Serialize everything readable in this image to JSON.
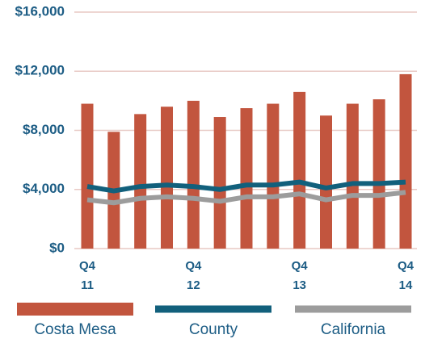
{
  "chart_data": {
    "type": "bar",
    "categories": [
      "Q4\n11",
      null,
      null,
      null,
      "Q4\n12",
      null,
      null,
      null,
      "Q4\n13",
      null,
      null,
      null,
      "Q4\n14"
    ],
    "series": [
      {
        "name": "Costa Mesa",
        "type": "bar",
        "color": "#c2553e",
        "values": [
          9800,
          7900,
          9100,
          9600,
          10000,
          8900,
          9500,
          9800,
          10600,
          9000,
          9800,
          10100,
          11800
        ]
      },
      {
        "name": "County",
        "type": "line",
        "color": "#12607c",
        "values": [
          4200,
          3900,
          4200,
          4300,
          4200,
          4000,
          4300,
          4300,
          4500,
          4100,
          4400,
          4400,
          4500
        ]
      },
      {
        "name": "California",
        "type": "line",
        "color": "#9c9c9c",
        "values": [
          3300,
          3100,
          3400,
          3500,
          3400,
          3200,
          3500,
          3500,
          3700,
          3300,
          3600,
          3600,
          3800
        ]
      }
    ],
    "ylim": [
      0,
      16000
    ],
    "yticks": [
      {
        "value": 0,
        "label": "$0"
      },
      {
        "value": 4000,
        "label": "$4,000"
      },
      {
        "value": 8000,
        "label": "$8,000"
      },
      {
        "value": 12000,
        "label": "$12,000"
      },
      {
        "value": 16000,
        "label": "$16,000"
      }
    ],
    "grid": true
  }
}
